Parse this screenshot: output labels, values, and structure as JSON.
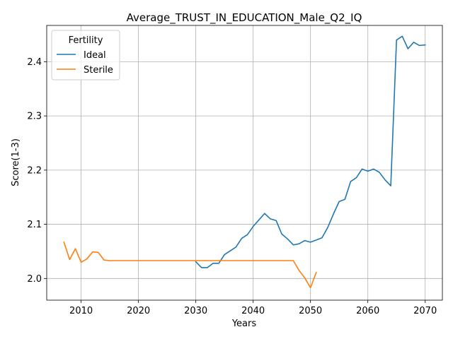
{
  "chart_data": {
    "type": "line",
    "title": "Average_TRUST_IN_EDUCATION_Male_Q2_IQ",
    "xlabel": "Years",
    "ylabel": "Score(1-3)",
    "xlim": [
      2004,
      2073
    ],
    "ylim": [
      1.96,
      2.467
    ],
    "xticks": [
      2010,
      2020,
      2030,
      2040,
      2050,
      2060,
      2070
    ],
    "yticks": [
      2.0,
      2.1,
      2.2,
      2.3,
      2.4
    ],
    "ytick_labels": [
      "2.0",
      "2.1",
      "2.2",
      "2.3",
      "2.4"
    ],
    "grid": true,
    "legend": {
      "title": "Fertility",
      "placement": "top-left"
    },
    "series": [
      {
        "name": "Ideal",
        "color": "#1f77b4",
        "x": [
          2030,
          2031,
          2032,
          2033,
          2034,
          2035,
          2036,
          2037,
          2038,
          2039,
          2040,
          2041,
          2042,
          2043,
          2044,
          2045,
          2046,
          2047,
          2048,
          2049,
          2050,
          2051,
          2052,
          2053,
          2054,
          2055,
          2056,
          2057,
          2058,
          2059,
          2060,
          2061,
          2062,
          2063,
          2064,
          2065,
          2066,
          2067,
          2068,
          2069,
          2070
        ],
        "y": [
          2.031,
          2.02,
          2.02,
          2.028,
          2.028,
          2.044,
          2.051,
          2.058,
          2.074,
          2.081,
          2.096,
          2.108,
          2.12,
          2.11,
          2.107,
          2.082,
          2.073,
          2.062,
          2.064,
          2.07,
          2.067,
          2.071,
          2.075,
          2.094,
          2.119,
          2.142,
          2.146,
          2.179,
          2.186,
          2.202,
          2.198,
          2.202,
          2.196,
          2.182,
          2.171,
          2.44,
          2.447,
          2.424,
          2.436,
          2.43,
          2.431
        ]
      },
      {
        "name": "Sterile",
        "color": "#ff7f0e",
        "x": [
          2007,
          2008,
          2009,
          2010,
          2011,
          2012,
          2013,
          2014,
          2015,
          2016,
          2017,
          2018,
          2019,
          2020,
          2021,
          2022,
          2023,
          2024,
          2025,
          2026,
          2027,
          2028,
          2029,
          2030,
          2031,
          2032,
          2033,
          2034,
          2035,
          2036,
          2037,
          2038,
          2039,
          2040,
          2041,
          2042,
          2043,
          2044,
          2045,
          2046,
          2047,
          2048,
          2049,
          2050,
          2051
        ],
        "y": [
          2.067,
          2.035,
          2.055,
          2.03,
          2.036,
          2.049,
          2.048,
          2.034,
          2.033,
          2.033,
          2.033,
          2.033,
          2.033,
          2.033,
          2.033,
          2.033,
          2.033,
          2.033,
          2.033,
          2.033,
          2.033,
          2.033,
          2.033,
          2.033,
          2.033,
          2.033,
          2.033,
          2.033,
          2.033,
          2.033,
          2.033,
          2.033,
          2.033,
          2.033,
          2.033,
          2.033,
          2.033,
          2.033,
          2.033,
          2.033,
          2.033,
          2.015,
          2.001,
          1.983,
          2.011
        ]
      }
    ]
  }
}
